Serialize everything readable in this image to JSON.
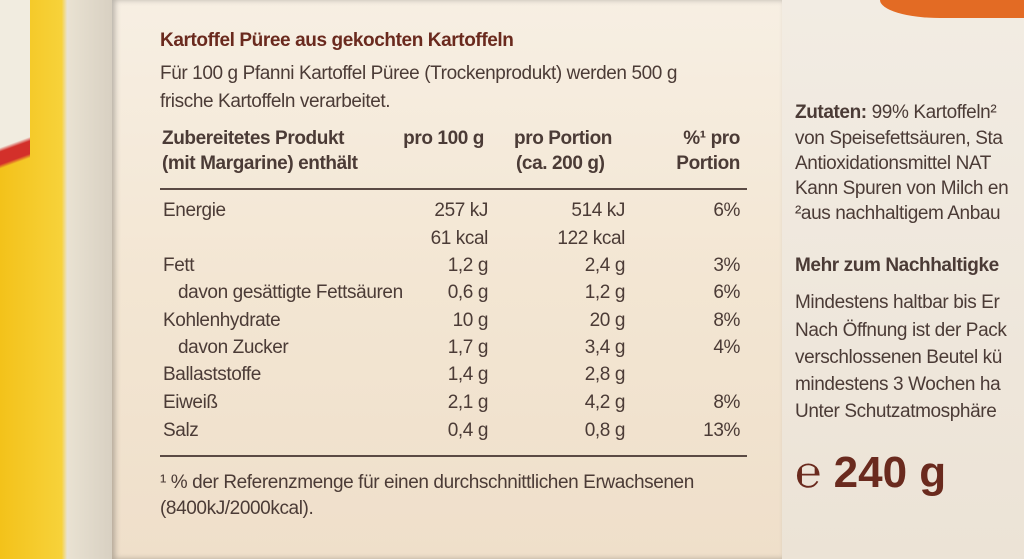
{
  "title": "Kartoffel Püree aus gekochten Kartoffeln",
  "intro": [
    "Für 100 g Pfanni Kartoffel Püree (Trockenprodukt) werden 500 g",
    "frische Kartoffeln verarbeitet."
  ],
  "table": {
    "header": [
      [
        "Zubereitetes Produkt",
        "(mit Margarine) enthält"
      ],
      [
        "pro 100 g"
      ],
      [
        "pro Portion",
        "(ca. 200 g)"
      ],
      [
        "%¹ pro",
        "Portion"
      ]
    ],
    "rows": [
      {
        "label": "Energie",
        "per100": "257 kJ",
        "portion": "514 kJ",
        "percent": "6%"
      },
      {
        "per100": "61 kcal",
        "portion": "122 kcal"
      },
      {
        "label": "Fett",
        "per100": "1,2 g",
        "portion": "2,4 g",
        "percent": "3%"
      },
      {
        "label": "davon gesättigte Fettsäuren",
        "per100": "0,6 g",
        "portion": "1,2 g",
        "percent": "6%"
      },
      {
        "label": "Kohlenhydrate",
        "per100": "10 g",
        "portion": "20 g",
        "percent": "8%"
      },
      {
        "label": "davon Zucker",
        "per100": "1,7 g",
        "portion": "3,4 g",
        "percent": "4%"
      },
      {
        "label": "Ballaststoffe",
        "per100": "1,4 g",
        "portion": "2,8 g"
      },
      {
        "label": "Eiweiß",
        "per100": "2,1 g",
        "portion": "4,2 g",
        "percent": "8%"
      },
      {
        "label": "Salz",
        "per100": "0,4 g",
        "portion": "0,8 g",
        "percent": "13%"
      }
    ]
  },
  "footnote": [
    "¹ % der Referenzmenge für einen durchschnittlichen Erwachsenen",
    "(8400kJ/2000kcal)."
  ],
  "side": {
    "ingredients_label": "Zutaten:",
    "lines": [
      "99% Kartoffeln²",
      "von Speisefettsäuren, Sta",
      "Antioxidationsmittel NAT",
      "Kann Spuren von Milch en",
      "²aus nachhaltigem Anbau"
    ],
    "heading": "Mehr zum Nachhaltigke",
    "notes": [
      "Mindestens haltbar bis Er",
      "Nach Öffnung ist der Pack",
      "verschlossenen Beutel kü",
      "mindestens 3 Wochen ha",
      "Unter Schutzatmosphäre"
    ],
    "weight": "℮ 240 g"
  }
}
